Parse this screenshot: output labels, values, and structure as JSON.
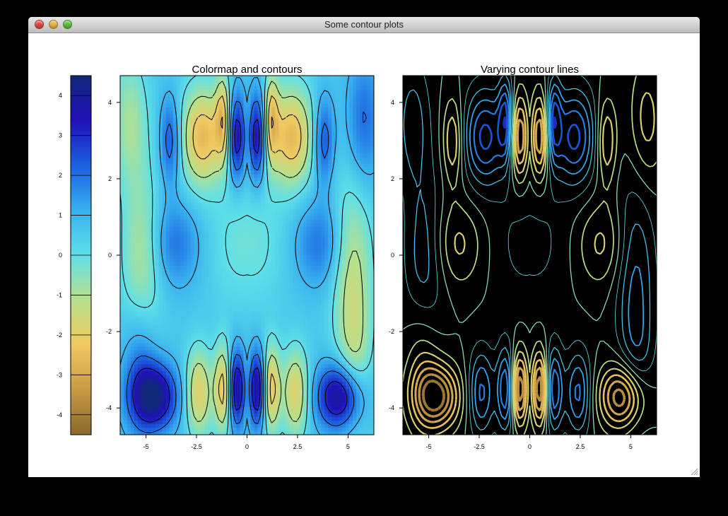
{
  "window": {
    "title": "Some contour plots",
    "controls": {
      "close": "close-button",
      "minimize": "minimize-button",
      "zoom": "zoom-button"
    }
  },
  "chart_data": [
    {
      "type": "heatmap",
      "title": "Colormap and contours",
      "xlabel": "",
      "ylabel": "",
      "x_range": [
        -6.28,
        6.28
      ],
      "y_range": [
        -4.7,
        4.7
      ],
      "x_ticks": [
        -5,
        -2.5,
        0,
        2.5,
        5
      ],
      "x_tick_labels": [
        "-5",
        "-2.5",
        "0",
        "2.5",
        "5"
      ],
      "y_ticks": [
        -4,
        -2,
        0,
        2,
        4
      ],
      "y_tick_labels": [
        "-4",
        "-2",
        "0",
        "2",
        "4"
      ],
      "colormap": "jet-like (brown-yellow-cyan-blue)",
      "contours": {
        "positive_levels": "solid black",
        "negative_levels": "dashed black"
      },
      "colorbar": {
        "range": [
          -4.5,
          4.5
        ],
        "ticks": [
          -4,
          -3,
          -2,
          -1,
          0,
          1,
          2,
          3,
          4
        ],
        "tick_labels": [
          "-4",
          "-3",
          "-2",
          "-1",
          "0",
          "1",
          "2",
          "3",
          "4"
        ],
        "placement": "left"
      }
    },
    {
      "type": "contour",
      "title": "Varying contour lines",
      "xlabel": "",
      "ylabel": "",
      "x_range": [
        -6.28,
        6.28
      ],
      "y_range": [
        -4.7,
        4.7
      ],
      "x_ticks": [
        -5,
        -2.5,
        0,
        2.5,
        5
      ],
      "x_tick_labels": [
        "-5",
        "-2.5",
        "0",
        "2.5",
        "5"
      ],
      "y_ticks": [
        -4,
        -2,
        0,
        2,
        4
      ],
      "y_tick_labels": [
        "-4",
        "-2",
        "0",
        "2",
        "4"
      ],
      "background": "#000000",
      "line_color": "by level, same colormap",
      "line_width": "varies with level"
    }
  ],
  "colors": {
    "cmap": [
      "#8a6a2e",
      "#c89a45",
      "#f0c860",
      "#b8e08a",
      "#5fe0e8",
      "#38b0f0",
      "#1a60e0",
      "#2010b8",
      "#10287a"
    ]
  }
}
